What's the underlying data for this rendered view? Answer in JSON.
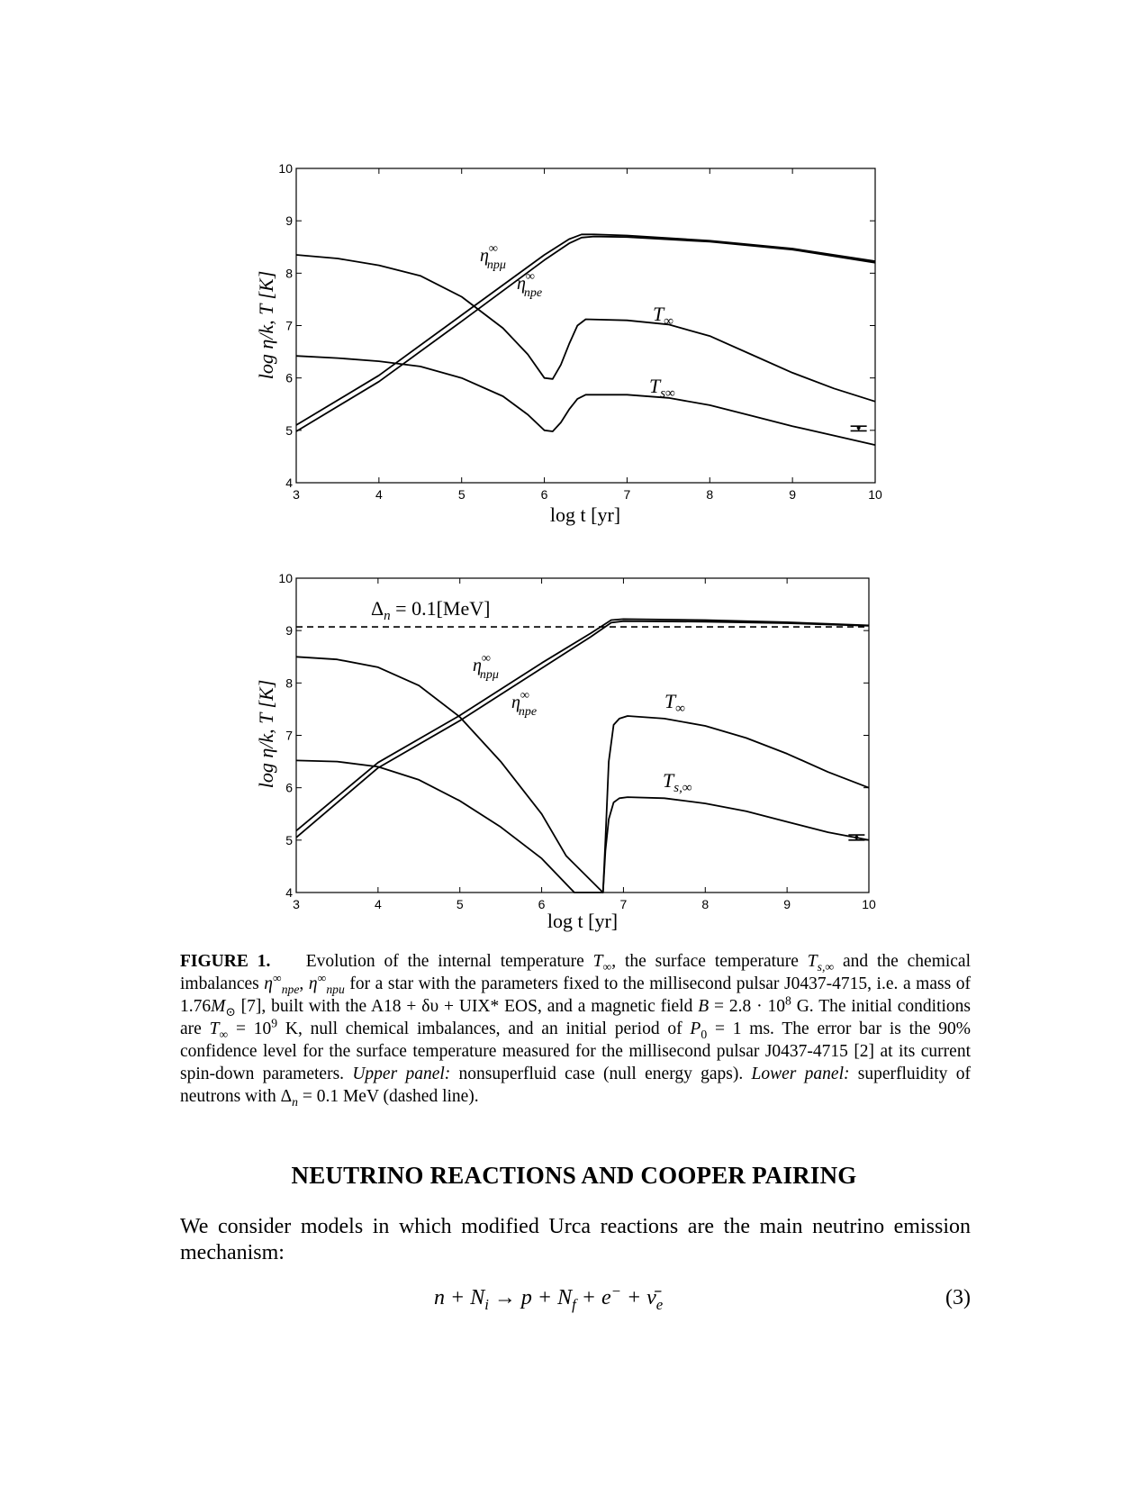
{
  "chart_data": [
    {
      "type": "line",
      "panel": "upper",
      "xlabel": "log  t [yr]",
      "ylabel": "log η/k, T [K]",
      "xlim": [
        3,
        10
      ],
      "ylim": [
        4,
        10
      ],
      "xticks": [
        "3",
        "4",
        "5",
        "6",
        "7",
        "8",
        "9",
        "10"
      ],
      "yticks": [
        "4",
        "5",
        "6",
        "7",
        "8",
        "9",
        "10"
      ],
      "grid": false,
      "annotations": [
        "η∞npμ",
        "η∞npe",
        "T∞",
        "Ts∞"
      ],
      "series": [
        {
          "name": "T∞",
          "x": [
            3.0,
            3.5,
            4.0,
            4.5,
            5.0,
            5.5,
            5.8,
            6.0,
            6.1,
            6.2,
            6.3,
            6.4,
            6.5,
            7.0,
            7.5,
            8.0,
            8.5,
            9.0,
            9.5,
            10.0
          ],
          "y": [
            8.35,
            8.28,
            8.15,
            7.95,
            7.55,
            6.95,
            6.45,
            6.0,
            5.98,
            6.25,
            6.65,
            7.0,
            7.12,
            7.1,
            7.02,
            6.8,
            6.45,
            6.1,
            5.8,
            5.55
          ]
        },
        {
          "name": "Ts∞",
          "x": [
            3.0,
            3.5,
            4.0,
            4.5,
            5.0,
            5.5,
            5.8,
            6.0,
            6.1,
            6.2,
            6.3,
            6.4,
            6.5,
            7.0,
            7.5,
            8.0,
            8.5,
            9.0,
            9.5,
            10.0
          ],
          "y": [
            6.42,
            6.38,
            6.32,
            6.22,
            6.0,
            5.65,
            5.3,
            5.0,
            4.98,
            5.15,
            5.4,
            5.6,
            5.68,
            5.68,
            5.62,
            5.48,
            5.28,
            5.08,
            4.9,
            4.72
          ]
        },
        {
          "name": "η∞npμ",
          "x": [
            3.0,
            4.0,
            5.0,
            6.0,
            6.3,
            6.45,
            6.6,
            7.0,
            8.0,
            9.0,
            10.0
          ],
          "y": [
            5.1,
            6.05,
            7.2,
            8.35,
            8.65,
            8.74,
            8.74,
            8.72,
            8.62,
            8.47,
            8.23
          ]
        },
        {
          "name": "η∞npe",
          "x": [
            3.0,
            4.0,
            5.0,
            6.0,
            6.3,
            6.45,
            6.6,
            7.0,
            8.0,
            9.0,
            10.0
          ],
          "y": [
            4.98,
            5.93,
            7.08,
            8.25,
            8.57,
            8.68,
            8.7,
            8.69,
            8.6,
            8.45,
            8.2
          ]
        }
      ],
      "errorbar": {
        "x": 9.8,
        "y": 5.05,
        "yerr": [
          4.99,
          5.08
        ]
      }
    },
    {
      "type": "line",
      "panel": "lower",
      "xlabel": "log  t [yr]",
      "ylabel": "log η/k, T [K]",
      "xlim": [
        3,
        10
      ],
      "ylim": [
        4,
        10
      ],
      "xticks": [
        "3",
        "4",
        "5",
        "6",
        "7",
        "8",
        "9",
        "10"
      ],
      "yticks": [
        "4",
        "5",
        "6",
        "7",
        "8",
        "9",
        "10"
      ],
      "grid": false,
      "annotations": [
        "Δn = 0.1[MeV]",
        "η∞npμ",
        "η∞npe",
        "T∞",
        "Ts,∞"
      ],
      "hline": {
        "y": 9.07,
        "style": "dashed",
        "label": "Δn = 0.1[MeV]"
      },
      "series": [
        {
          "name": "T∞",
          "x": [
            3.0,
            3.5,
            4.0,
            4.5,
            5.0,
            5.5,
            6.0,
            6.3,
            6.75,
            6.78,
            6.82,
            6.88,
            6.95,
            7.05,
            7.5,
            8.0,
            8.5,
            9.0,
            9.5,
            10.0
          ],
          "y": [
            8.5,
            8.45,
            8.3,
            7.95,
            7.35,
            6.5,
            5.5,
            4.7,
            4.0,
            5.0,
            6.5,
            7.2,
            7.32,
            7.37,
            7.32,
            7.18,
            6.95,
            6.65,
            6.3,
            6.0
          ]
        },
        {
          "name": "Ts,∞",
          "x": [
            3.0,
            3.5,
            4.0,
            4.5,
            5.0,
            5.5,
            6.0,
            6.4,
            6.75,
            6.78,
            6.82,
            6.88,
            6.95,
            7.05,
            7.5,
            8.0,
            8.5,
            9.0,
            9.5,
            10.0
          ],
          "y": [
            6.52,
            6.5,
            6.4,
            6.15,
            5.75,
            5.25,
            4.65,
            4.0,
            4.0,
            4.8,
            5.4,
            5.72,
            5.8,
            5.82,
            5.8,
            5.7,
            5.55,
            5.35,
            5.15,
            5.0
          ]
        },
        {
          "name": "η∞npμ",
          "x": [
            3.0,
            4.0,
            5.0,
            6.0,
            6.6,
            6.85,
            7.0,
            8.0,
            9.0,
            10.0
          ],
          "y": [
            5.18,
            6.48,
            7.38,
            8.38,
            8.95,
            9.2,
            9.22,
            9.2,
            9.16,
            9.1
          ]
        },
        {
          "name": "η∞npe",
          "x": [
            3.0,
            4.0,
            5.0,
            6.0,
            6.6,
            6.85,
            7.0,
            8.0,
            9.0,
            10.0
          ],
          "y": [
            5.05,
            6.38,
            7.28,
            8.28,
            8.88,
            9.15,
            9.18,
            9.17,
            9.14,
            9.09
          ]
        }
      ],
      "errorbar": {
        "x": 9.85,
        "y": 5.05,
        "yerr": [
          5.0,
          5.1
        ]
      }
    }
  ],
  "caption": {
    "label": "FIGURE 1.",
    "t1": "Evolution of the internal temperature ",
    "T": "T",
    "inf": "∞",
    "t2": ", the surface temperature ",
    "Ts": "T",
    "s_inf": "s,∞",
    "t3": " and the chemical imbalances ",
    "eta": "η",
    "npe": "npe",
    "npu": "npu",
    "comma": ", ",
    "t4": " for a star with the parameters fixed to the millisecond pulsar J0437-4715, i.e. a mass of 1.76",
    "M": "M",
    "sun": "⊙",
    "t5": " [7], built with the A18 + δυ + UIX* EOS, and a magnetic field ",
    "B": "B",
    "t6": " = 2.8 · 10",
    "exp8": "8",
    "t7": " G. The initial conditions are ",
    "t8": " = 10",
    "exp9": "9",
    "t9": " K, null chemical imbalances, and an initial period of ",
    "P": "P",
    "zero": "0",
    "t10": " = 1 ms. The error bar is the 90% confidence level for the surface temperature measured for the millisecond pulsar J0437-4715 [2] at its current spin-down parameters. ",
    "upper_label": "Upper panel:",
    "t11": " nonsuperfluid case (null energy gaps). ",
    "lower_label": "Lower panel:",
    "t12": " superfluidity of neutrons with Δ",
    "n": "n",
    "t13": " = 0.1 MeV (dashed line)."
  },
  "section_title": "NEUTRINO REACTIONS AND COOPER PAIRING",
  "paragraph": "We consider models in which modified Urca reactions are the main neutrino emission mechanism:",
  "equation": {
    "lhs": "n + N",
    "i": "i",
    "arrow": " → p + N",
    "f": "f",
    "mid": " + e",
    "minus": "−",
    "plus_nu": " + ν̄",
    "e": "e",
    "number": "(3)"
  }
}
